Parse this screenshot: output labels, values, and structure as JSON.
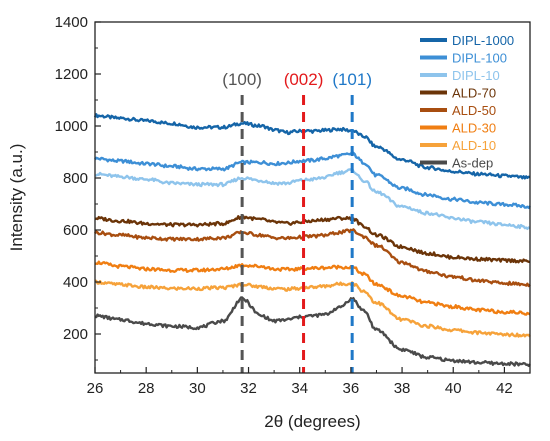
{
  "chart_data": {
    "type": "line",
    "xlabel": "2θ (degrees)",
    "ylabel": "Intensity (a.u.)",
    "xlim": [
      26,
      43
    ],
    "ylim": [
      50,
      1400
    ],
    "xticks": [
      26,
      28,
      30,
      32,
      34,
      36,
      38,
      40,
      42
    ],
    "yticks": [
      200,
      400,
      600,
      800,
      1000,
      1200,
      1400
    ],
    "grid": false,
    "legend_position": "top-right",
    "reference_lines": [
      {
        "x": 31.75,
        "label": "(100)",
        "color": "#555555"
      },
      {
        "x": 34.15,
        "label": "(002)",
        "color": "#e31a1c"
      },
      {
        "x": 36.05,
        "label": "(101)",
        "color": "#1f78c8"
      }
    ],
    "x": [
      26,
      27,
      28,
      29,
      30,
      31,
      31.75,
      32.5,
      33,
      33.5,
      34,
      34.15,
      34.5,
      35,
      35.5,
      36.05,
      36.5,
      37,
      38,
      39,
      40,
      41,
      42,
      43
    ],
    "series": [
      {
        "name": "DIPL-1000",
        "color": "#1565a8",
        "values": [
          1040,
          1030,
          1020,
          1010,
          995,
          995,
          1010,
          1000,
          985,
          975,
          980,
          982,
          980,
          983,
          988,
          982,
          960,
          920,
          870,
          840,
          825,
          815,
          808,
          800
        ]
      },
      {
        "name": "DIPL-100",
        "color": "#3d8fd6",
        "values": [
          875,
          865,
          855,
          845,
          835,
          835,
          860,
          860,
          855,
          858,
          865,
          866,
          868,
          875,
          885,
          893,
          860,
          810,
          760,
          735,
          718,
          705,
          698,
          690
        ]
      },
      {
        "name": "DIPL-10",
        "color": "#8ec4ec",
        "values": [
          815,
          805,
          795,
          780,
          775,
          775,
          800,
          790,
          780,
          780,
          790,
          792,
          795,
          802,
          820,
          830,
          790,
          745,
          690,
          665,
          645,
          630,
          620,
          610
        ]
      },
      {
        "name": "ALD-70",
        "color": "#6b3408",
        "values": [
          645,
          635,
          625,
          620,
          620,
          625,
          650,
          640,
          630,
          625,
          630,
          632,
          635,
          640,
          645,
          645,
          615,
          580,
          535,
          510,
          495,
          488,
          483,
          480
        ]
      },
      {
        "name": "ALD-50",
        "color": "#a84e10",
        "values": [
          590,
          580,
          570,
          565,
          565,
          570,
          590,
          580,
          570,
          568,
          572,
          574,
          576,
          580,
          590,
          598,
          575,
          540,
          475,
          440,
          420,
          405,
          395,
          390
        ]
      },
      {
        "name": "ALD-30",
        "color": "#f07e12",
        "values": [
          475,
          460,
          450,
          445,
          445,
          450,
          465,
          460,
          450,
          448,
          450,
          452,
          453,
          455,
          458,
          456,
          430,
          390,
          345,
          320,
          305,
          292,
          285,
          280
        ]
      },
      {
        "name": "ALD-10",
        "color": "#f6a23a",
        "values": [
          400,
          390,
          380,
          375,
          375,
          378,
          390,
          382,
          375,
          372,
          376,
          378,
          380,
          384,
          392,
          395,
          365,
          320,
          255,
          230,
          215,
          205,
          198,
          195
        ]
      },
      {
        "name": "As-dep",
        "color": "#4a4a4a",
        "values": [
          270,
          255,
          240,
          230,
          225,
          250,
          335,
          270,
          250,
          255,
          265,
          268,
          270,
          275,
          300,
          335,
          290,
          215,
          140,
          110,
          98,
          90,
          86,
          82
        ]
      }
    ]
  }
}
